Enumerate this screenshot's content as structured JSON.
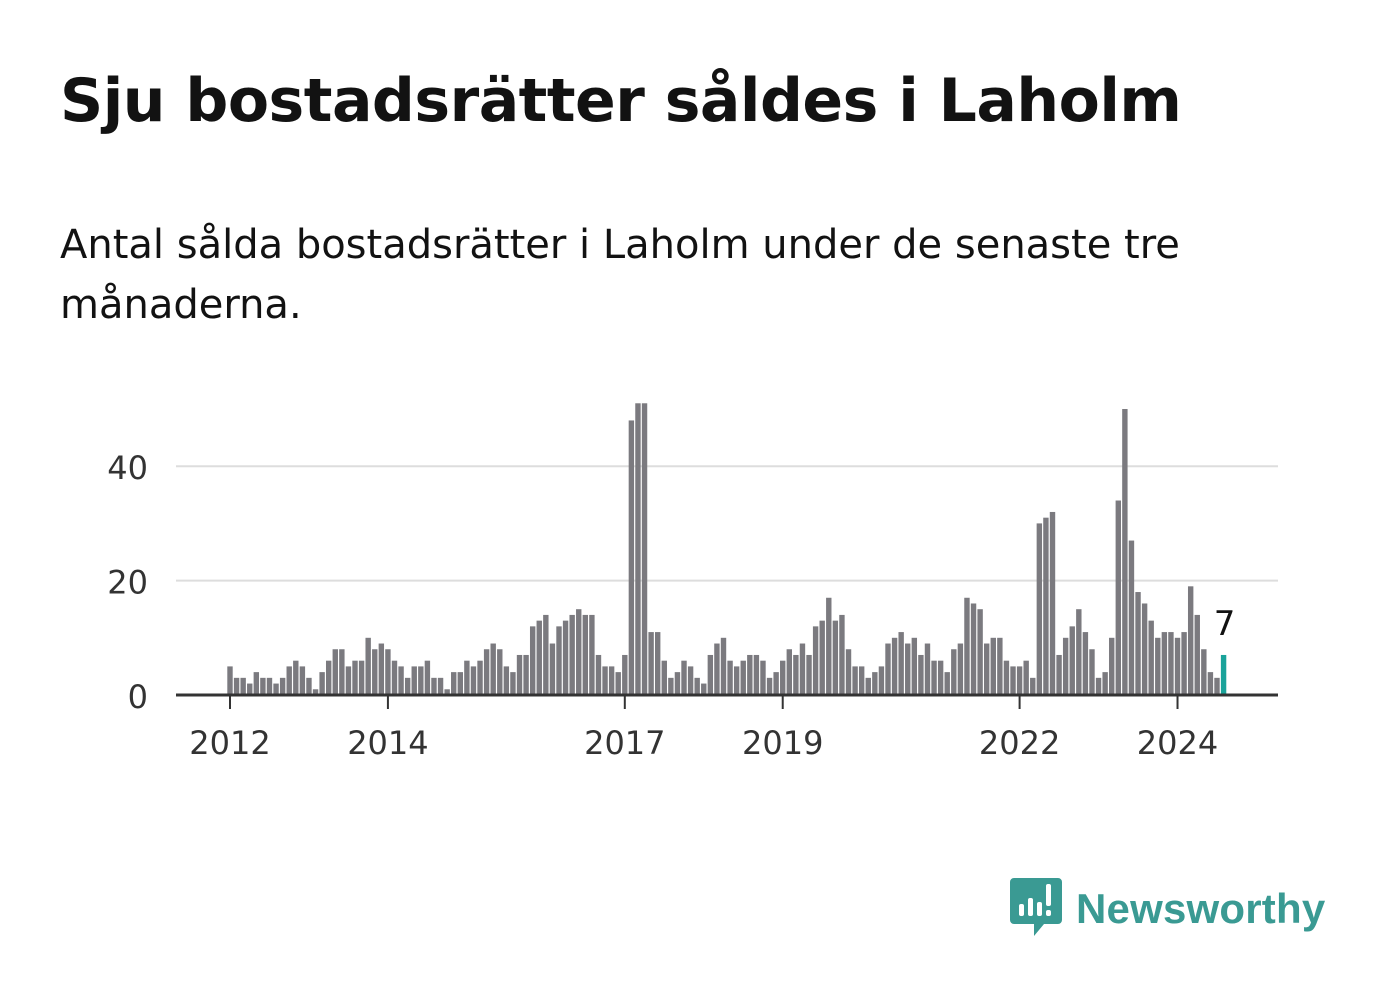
{
  "title": "Sju bostadsrätter såldes i Laholm",
  "subtitle": "Antal sålda bostadsrätter i Laholm under de senaste tre månaderna.",
  "brand": {
    "name": "Newsworthy",
    "icon": "newsworthy-logo-icon",
    "color": "#3a9a93"
  },
  "chart_data": {
    "type": "bar",
    "x_start": "2012-01",
    "interval": "month",
    "ylim": [
      0,
      52
    ],
    "yticks": [
      0,
      20,
      40
    ],
    "xtick_labels": [
      {
        "label": "2012",
        "month": "2012-01"
      },
      {
        "label": "2014",
        "month": "2014-01"
      },
      {
        "label": "2017",
        "month": "2017-01"
      },
      {
        "label": "2019",
        "month": "2019-01"
      },
      {
        "label": "2022",
        "month": "2022-01"
      },
      {
        "label": "2024",
        "month": "2024-01"
      }
    ],
    "grid": true,
    "bar_color": "#7b7a7f",
    "highlight_color": "#1aa39a",
    "highlight_label": "7",
    "values": [
      5,
      3,
      3,
      2,
      4,
      3,
      3,
      2,
      3,
      5,
      6,
      5,
      3,
      1,
      4,
      6,
      8,
      8,
      5,
      6,
      6,
      10,
      8,
      9,
      8,
      6,
      5,
      3,
      5,
      5,
      6,
      3,
      3,
      1,
      4,
      4,
      6,
      5,
      6,
      8,
      9,
      8,
      5,
      4,
      7,
      7,
      12,
      13,
      14,
      9,
      12,
      13,
      14,
      15,
      14,
      14,
      7,
      5,
      5,
      4,
      7,
      48,
      51,
      51,
      11,
      11,
      6,
      3,
      4,
      6,
      5,
      3,
      2,
      7,
      9,
      10,
      6,
      5,
      6,
      7,
      7,
      6,
      3,
      4,
      6,
      8,
      7,
      9,
      7,
      12,
      13,
      17,
      13,
      14,
      8,
      5,
      5,
      3,
      4,
      5,
      9,
      10,
      11,
      9,
      10,
      7,
      9,
      6,
      6,
      4,
      8,
      9,
      17,
      16,
      15,
      9,
      10,
      10,
      6,
      5,
      5,
      6,
      3,
      30,
      31,
      32,
      7,
      10,
      12,
      15,
      11,
      8,
      3,
      4,
      10,
      34,
      50,
      27,
      18,
      16,
      13,
      10,
      11,
      11,
      10,
      11,
      19,
      14,
      8,
      4,
      3,
      7
    ]
  }
}
